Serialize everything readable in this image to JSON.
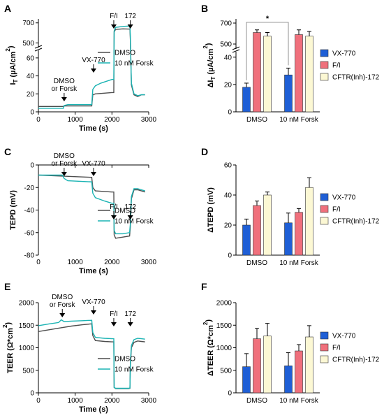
{
  "panels": {
    "A": {
      "letter": "A",
      "chart_data": {
        "type": "line",
        "xlabel": "Time (s)",
        "ylabel": "I_T (µA/cm²)",
        "ylabel_main": "I",
        "ylabel_sub": "T",
        "ylabel_rest": " (µA/cm",
        "ylabel_sup": "2",
        "ylabel_close": ")",
        "xlim": [
          0,
          3000
        ],
        "xticks": [
          0,
          1000,
          2000,
          3000
        ],
        "y_broken": true,
        "ylim_lower": [
          0,
          70
        ],
        "yticks_lower": [
          0,
          20,
          40,
          60
        ],
        "ylim_upper": [
          440,
          740
        ],
        "yticks_upper": [
          500,
          700
        ],
        "annotations": [
          {
            "label": "DMSO",
            "label2": "or Forsk",
            "x": 700
          },
          {
            "label": "VX-770",
            "x": 1500
          },
          {
            "label": "F/I",
            "x": 2050
          },
          {
            "label": "172",
            "x": 2500
          }
        ],
        "series": [
          {
            "name": "DMSO",
            "color": "#4d4d4d",
            "points": [
              [
                0,
                6
              ],
              [
                680,
                6
              ],
              [
                700,
                6.5
              ],
              [
                1450,
                6.5
              ],
              [
                1480,
                19
              ],
              [
                1550,
                20
              ],
              [
                2000,
                21.5
              ],
              [
                2050,
                21.5
              ],
              [
                2060,
                610
              ],
              [
                2100,
                635
              ],
              [
                2300,
                640
              ],
              [
                2450,
                638
              ],
              [
                2490,
                638
              ],
              [
                2500,
                530
              ],
              [
                2530,
                30
              ],
              [
                2600,
                19
              ],
              [
                2700,
                17
              ],
              [
                2800,
                19
              ],
              [
                2900,
                19
              ]
            ]
          },
          {
            "name": "10 nM Forsk",
            "color": "#1ab3b3",
            "points": [
              [
                0,
                4
              ],
              [
                680,
                4
              ],
              [
                700,
                7
              ],
              [
                800,
                8
              ],
              [
                1450,
                8
              ],
              [
                1480,
                25
              ],
              [
                1550,
                29
              ],
              [
                1700,
                32
              ],
              [
                2000,
                36
              ],
              [
                2050,
                36
              ],
              [
                2060,
                620
              ],
              [
                2100,
                655
              ],
              [
                2300,
                665
              ],
              [
                2450,
                668
              ],
              [
                2490,
                668
              ],
              [
                2500,
                560
              ],
              [
                2530,
                32
              ],
              [
                2600,
                20
              ],
              [
                2700,
                18
              ],
              [
                2800,
                19
              ],
              [
                2900,
                19
              ]
            ]
          }
        ]
      }
    },
    "B": {
      "letter": "B",
      "chart_data": {
        "type": "bar",
        "ylabel": "ΔI_T (µA/cm²)",
        "ylabel_main": "ΔI",
        "ylabel_sub": "T",
        "ylabel_rest": " (µA/cm",
        "ylabel_sup": "2",
        "ylabel_close": ")",
        "categories": [
          "DMSO",
          "10 nM Forsk"
        ],
        "y_broken": true,
        "ylim_lower": [
          0,
          45
        ],
        "yticks_lower": [
          0,
          20,
          40
        ],
        "ylim_upper": [
          440,
          740
        ],
        "yticks_upper": [
          500,
          700
        ],
        "significance": {
          "label": "*",
          "between": [
            [
              0,
              0
            ],
            [
              1,
              0
            ]
          ]
        },
        "series": [
          {
            "name": "VX-770",
            "color": "#1f5fd6",
            "values": [
              18,
              27
            ],
            "errors": [
              3,
              5
            ]
          },
          {
            "name": "F/I",
            "color": "#f0707c",
            "values": [
              610,
              590
            ],
            "errors": [
              25,
              45
            ]
          },
          {
            "name": "CFTR(Inh)-172",
            "color": "#fcf8d4",
            "values": [
              575,
              575
            ],
            "errors": [
              35,
              45
            ]
          }
        ]
      }
    },
    "C": {
      "letter": "C",
      "chart_data": {
        "type": "line",
        "xlabel": "Time (s)",
        "ylabel": "TEPD (mV)",
        "xlim": [
          0,
          3000
        ],
        "xticks": [
          0,
          1000,
          2000,
          3000
        ],
        "ylim": [
          -80,
          0
        ],
        "yticks": [
          -80,
          -60,
          -40,
          -20,
          0
        ],
        "annotations": [
          {
            "label": "DMSO",
            "label2": "or Forsk",
            "x": 700
          },
          {
            "label": "VX-770",
            "x": 1500
          },
          {
            "label": "F/I",
            "x": 2050
          },
          {
            "label": "172",
            "x": 2500
          }
        ],
        "series": [
          {
            "name": "DMSO",
            "color": "#4d4d4d",
            "points": [
              [
                0,
                -9
              ],
              [
                700,
                -10
              ],
              [
                1450,
                -11
              ],
              [
                1480,
                -20
              ],
              [
                1550,
                -23
              ],
              [
                2000,
                -24
              ],
              [
                2050,
                -24
              ],
              [
                2060,
                -62
              ],
              [
                2100,
                -65
              ],
              [
                2300,
                -64
              ],
              [
                2480,
                -63
              ],
              [
                2500,
                -55
              ],
              [
                2530,
                -30
              ],
              [
                2600,
                -22
              ],
              [
                2700,
                -22
              ],
              [
                2800,
                -23
              ],
              [
                2900,
                -24
              ]
            ]
          },
          {
            "name": "10 nM Forsk",
            "color": "#1ab3b3",
            "points": [
              [
                0,
                -9
              ],
              [
                650,
                -9
              ],
              [
                700,
                -12
              ],
              [
                800,
                -14
              ],
              [
                1450,
                -15
              ],
              [
                1480,
                -25
              ],
              [
                1550,
                -29
              ],
              [
                1800,
                -32
              ],
              [
                2000,
                -34
              ],
              [
                2050,
                -34
              ],
              [
                2060,
                -58
              ],
              [
                2100,
                -61
              ],
              [
                2300,
                -61
              ],
              [
                2480,
                -60
              ],
              [
                2500,
                -52
              ],
              [
                2530,
                -28
              ],
              [
                2600,
                -21
              ],
              [
                2700,
                -21
              ],
              [
                2800,
                -22
              ],
              [
                2900,
                -23
              ]
            ]
          }
        ]
      }
    },
    "D": {
      "letter": "D",
      "chart_data": {
        "type": "bar",
        "ylabel": "ΔTEPD (mV)",
        "categories": [
          "DMSO",
          "10 nM Forsk"
        ],
        "ylim": [
          0,
          60
        ],
        "yticks": [
          0,
          20,
          40,
          60
        ],
        "series": [
          {
            "name": "VX-770",
            "color": "#1f5fd6",
            "values": [
              20,
              21.5
            ],
            "errors": [
              4,
              6.5
            ]
          },
          {
            "name": "F/I",
            "color": "#f0707c",
            "values": [
              33,
              28.5
            ],
            "errors": [
              3,
              2.5
            ]
          },
          {
            "name": "CFTR(Inh)-172",
            "color": "#fcf8d4",
            "values": [
              40,
              45
            ],
            "errors": [
              2,
              6.5
            ]
          }
        ]
      }
    },
    "E": {
      "letter": "E",
      "chart_data": {
        "type": "line",
        "xlabel": "Time (s)",
        "ylabel": "TEER (Ω*cm²)",
        "ylabel_main": "TEER (Ω*cm",
        "ylabel_sup": "2",
        "ylabel_close": ")",
        "xlim": [
          0,
          3000
        ],
        "xticks": [
          0,
          1000,
          2000,
          3000
        ],
        "ylim": [
          0,
          2000
        ],
        "yticks": [
          0,
          500,
          1000,
          1500,
          2000
        ],
        "annotations": [
          {
            "label": "DMSO",
            "label2": "or Forsk",
            "x": 650
          },
          {
            "label": "VX-770",
            "x": 1500
          },
          {
            "label": "F/I",
            "x": 2050
          },
          {
            "label": "172",
            "x": 2500
          }
        ],
        "series": [
          {
            "name": "DMSO",
            "color": "#4d4d4d",
            "points": [
              [
                0,
                1360
              ],
              [
                300,
                1400
              ],
              [
                600,
                1440
              ],
              [
                900,
                1480
              ],
              [
                1200,
                1510
              ],
              [
                1450,
                1530
              ],
              [
                1480,
                1270
              ],
              [
                1550,
                1160
              ],
              [
                1800,
                1140
              ],
              [
                2000,
                1130
              ],
              [
                2050,
                1130
              ],
              [
                2060,
                120
              ],
              [
                2100,
                95
              ],
              [
                2450,
                95
              ],
              [
                2490,
                100
              ],
              [
                2500,
                600
              ],
              [
                2530,
                1000
              ],
              [
                2600,
                1120
              ],
              [
                2700,
                1150
              ],
              [
                2800,
                1140
              ],
              [
                2900,
                1130
              ]
            ]
          },
          {
            "name": "10 nM Forsk",
            "color": "#1ab3b3",
            "points": [
              [
                0,
                1490
              ],
              [
                300,
                1530
              ],
              [
                550,
                1560
              ],
              [
                620,
                1620
              ],
              [
                700,
                1580
              ],
              [
                900,
                1590
              ],
              [
                1200,
                1600
              ],
              [
                1450,
                1610
              ],
              [
                1480,
                1340
              ],
              [
                1550,
                1230
              ],
              [
                1800,
                1210
              ],
              [
                2000,
                1200
              ],
              [
                2050,
                1200
              ],
              [
                2060,
                120
              ],
              [
                2100,
                100
              ],
              [
                2450,
                100
              ],
              [
                2490,
                105
              ],
              [
                2500,
                650
              ],
              [
                2530,
                1050
              ],
              [
                2600,
                1180
              ],
              [
                2700,
                1210
              ],
              [
                2800,
                1200
              ],
              [
                2900,
                1190
              ]
            ]
          }
        ]
      }
    },
    "F": {
      "letter": "F",
      "chart_data": {
        "type": "bar",
        "ylabel": "ΔTEER (Ω*cm²)",
        "ylabel_main": "ΔTEER (Ω*cm",
        "ylabel_sup": "2",
        "ylabel_close": ")",
        "categories": [
          "DMSO",
          "10 nM Forsk"
        ],
        "ylim": [
          0,
          2000
        ],
        "yticks": [
          0,
          500,
          1000,
          1500,
          2000
        ],
        "series": [
          {
            "name": "VX-770",
            "color": "#1f5fd6",
            "values": [
              580,
              600
            ],
            "errors": [
              290,
              290
            ]
          },
          {
            "name": "F/I",
            "color": "#f0707c",
            "values": [
              1200,
              930
            ],
            "errors": [
              230,
              140
            ]
          },
          {
            "name": "CFTR(Inh)-172",
            "color": "#fcf8d4",
            "values": [
              1260,
              1240
            ],
            "errors": [
              280,
              250
            ]
          }
        ]
      }
    }
  }
}
